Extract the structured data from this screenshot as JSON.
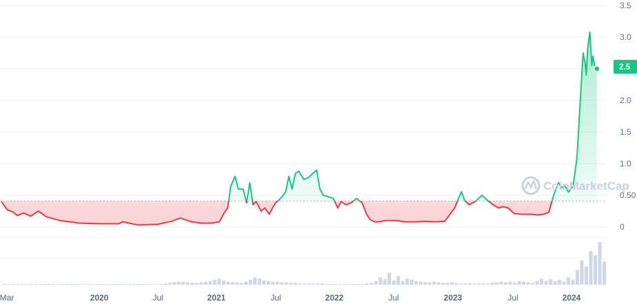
{
  "chart_data": {
    "type": "line",
    "x_tick_labels": [
      "Mar",
      "2020",
      "Jul",
      "2021",
      "Jul",
      "2022",
      "Jul",
      "2023",
      "Jul",
      "2024"
    ],
    "y_tick_labels": [
      "3.5",
      "3.0",
      "2.5",
      "2.0",
      "1.5",
      "1.0",
      "0.50",
      "0"
    ],
    "ylim": [
      0,
      3.5
    ],
    "grid": true,
    "baseline": 0.41,
    "current_price_label": "2.5",
    "current_price": 2.5,
    "watermark": "CoinMarketCap",
    "colors": {
      "up": "#16c784",
      "down": "#ea3943",
      "badge": "#16c784",
      "axis_text": "#616e85",
      "grid": "#eff2f5",
      "volume": "#cfd6e4"
    },
    "series": [
      {
        "x": [
          "2019-03-01",
          "2019-03-20",
          "2019-04-05",
          "2019-04-20",
          "2019-05-10",
          "2019-06-01",
          "2019-06-25",
          "2019-07-20",
          "2019-09-01",
          "2019-11-01",
          "2020-01-01",
          "2020-03-01",
          "2020-03-15",
          "2020-05-01",
          "2020-07-01",
          "2020-08-15",
          "2020-09-10",
          "2020-10-15",
          "2020-11-15",
          "2020-12-15",
          "2021-01-10",
          "2021-01-25",
          "2021-02-05",
          "2021-02-15",
          "2021-02-28",
          "2021-03-10",
          "2021-03-25",
          "2021-04-05",
          "2021-04-15",
          "2021-04-25",
          "2021-05-05",
          "2021-05-20",
          "2021-06-01",
          "2021-06-15",
          "2021-06-25",
          "2021-07-05",
          "2021-07-20",
          "2021-08-05",
          "2021-08-15",
          "2021-08-25",
          "2021-09-05",
          "2021-09-15",
          "2021-10-01",
          "2021-10-15",
          "2021-10-28",
          "2021-11-10",
          "2021-11-20",
          "2021-12-01",
          "2021-12-15",
          "2022-01-01",
          "2022-01-15",
          "2022-01-25",
          "2022-02-10",
          "2022-02-25",
          "2022-03-15",
          "2022-04-01",
          "2022-04-15",
          "2022-04-25",
          "2022-05-10",
          "2022-05-20",
          "2022-06-15",
          "2022-07-15",
          "2022-08-15",
          "2022-09-15",
          "2022-10-15",
          "2022-11-15",
          "2022-12-15",
          "2023-01-15",
          "2023-02-05",
          "2023-02-15",
          "2023-03-01",
          "2023-03-20",
          "2023-04-10",
          "2023-04-25",
          "2023-05-15",
          "2023-06-01",
          "2023-06-15",
          "2023-07-01",
          "2023-07-20",
          "2023-08-15",
          "2023-09-10",
          "2023-10-01",
          "2023-10-20",
          "2023-11-05",
          "2023-11-20",
          "2023-12-05",
          "2023-12-15",
          "2023-12-25",
          "2024-01-05",
          "2024-01-20",
          "2024-02-01",
          "2024-02-10",
          "2024-02-20",
          "2024-02-26",
          "2024-03-01",
          "2024-03-05",
          "2024-03-12",
          "2024-03-18",
          "2024-03-22",
          "2024-03-28",
          "2024-04-03"
        ],
        "y": [
          0.4,
          0.27,
          0.24,
          0.18,
          0.22,
          0.17,
          0.25,
          0.16,
          0.1,
          0.06,
          0.05,
          0.05,
          0.08,
          0.03,
          0.04,
          0.09,
          0.14,
          0.08,
          0.06,
          0.06,
          0.08,
          0.22,
          0.3,
          0.65,
          0.8,
          0.6,
          0.6,
          0.38,
          0.7,
          0.35,
          0.4,
          0.25,
          0.3,
          0.2,
          0.3,
          0.38,
          0.45,
          0.55,
          0.8,
          0.6,
          0.85,
          0.88,
          0.75,
          0.78,
          0.84,
          0.9,
          0.6,
          0.5,
          0.48,
          0.45,
          0.3,
          0.4,
          0.35,
          0.38,
          0.45,
          0.38,
          0.2,
          0.12,
          0.08,
          0.08,
          0.1,
          0.1,
          0.08,
          0.08,
          0.09,
          0.08,
          0.09,
          0.3,
          0.56,
          0.42,
          0.35,
          0.4,
          0.5,
          0.43,
          0.35,
          0.3,
          0.32,
          0.3,
          0.21,
          0.2,
          0.2,
          0.19,
          0.2,
          0.23,
          0.5,
          0.7,
          0.62,
          0.65,
          0.55,
          0.65,
          1.1,
          1.9,
          2.75,
          2.6,
          2.4,
          2.8,
          3.08,
          2.55,
          2.7,
          2.52,
          2.5
        ]
      }
    ],
    "volume": [
      1,
      1,
      1,
      1,
      1,
      1,
      1,
      1,
      1,
      1,
      1,
      1,
      1,
      1,
      1,
      1,
      1,
      1,
      1,
      1,
      1,
      1,
      1,
      1,
      1,
      1,
      1,
      1,
      1,
      1,
      1,
      1,
      1,
      1,
      1,
      1,
      2,
      3,
      4,
      5,
      5,
      4,
      3,
      3,
      4,
      5,
      6,
      8,
      10,
      7,
      5,
      4,
      4,
      3,
      5,
      8,
      12,
      10,
      7,
      6,
      5,
      5,
      4,
      4,
      3,
      3,
      2,
      2,
      2,
      2,
      2,
      2,
      1,
      1,
      1,
      1,
      1,
      1,
      1,
      1,
      1,
      2,
      3,
      6,
      12,
      9,
      20,
      7,
      14,
      6,
      10,
      8,
      6,
      5,
      4,
      4,
      5,
      4,
      3,
      3,
      4,
      3,
      2,
      2,
      2,
      2,
      2,
      2,
      2,
      3,
      4,
      5,
      4,
      5,
      4,
      6,
      5,
      4,
      3,
      6,
      10,
      6,
      9,
      6,
      8,
      5,
      12,
      8,
      24,
      40,
      30,
      55,
      48,
      70,
      38
    ]
  }
}
